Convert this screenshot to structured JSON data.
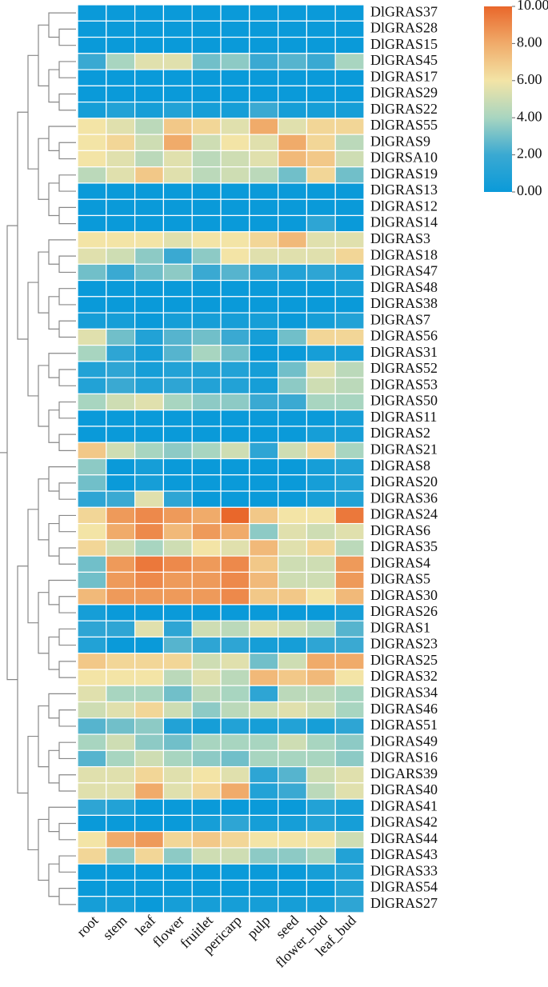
{
  "chart_data": {
    "type": "heatmap",
    "rows": [
      "DlGRAS37",
      "DlGRAS28",
      "DlGRAS15",
      "DlGRAS45",
      "DlGRAS17",
      "DlGRAS29",
      "DlGRAS22",
      "DlGRAS55",
      "DlGRAS9",
      "DlGRSA10",
      "DlGRAS19",
      "DlGRAS13",
      "DlGRAS12",
      "DlGRAS14",
      "DlGRAS3",
      "DlGRAS18",
      "DlGRAS47",
      "DlGRAS48",
      "DlGRAS38",
      "DlGRAS7",
      "DlGRAS56",
      "DlGRAS31",
      "DlGRAS52",
      "DlGRAS53",
      "DlGRAS50",
      "DlGRAS11",
      "DlGRAS2",
      "DlGRAS21",
      "DlGRAS8",
      "DlGRAS20",
      "DlGRAS36",
      "DlGRAS24",
      "DlGRAS6",
      "DlGRAS35",
      "DlGRAS4",
      "DlGRAS5",
      "DlGRAS30",
      "DlGRAS26",
      "DlGRAS1",
      "DlGRAS23",
      "DlGRAS25",
      "DlGRAS32",
      "DlGRAS34",
      "DlGRAS46",
      "DlGRAS51",
      "DlGRAS49",
      "DlGRAS16",
      "DlGARS39",
      "DlGRAS40",
      "DlGRAS41",
      "DlGRAS42",
      "DlGRAS44",
      "DlGRAS43",
      "DlGRAS33",
      "DlGRAS54",
      "DlGRAS27"
    ],
    "columns": [
      "root",
      "stem",
      "leaf",
      "flower",
      "fruitlet",
      "pericarp",
      "pulp",
      "seed",
      "flower_bud",
      "leaf_bud"
    ],
    "values": [
      [
        0,
        0,
        0,
        0,
        0,
        0,
        0,
        0,
        0,
        0
      ],
      [
        0,
        0,
        0,
        0,
        0,
        0,
        0,
        0,
        0,
        0
      ],
      [
        0,
        0,
        0,
        0,
        0,
        0,
        0,
        0,
        0,
        0
      ],
      [
        2,
        4,
        5.5,
        5.5,
        3,
        3.5,
        2,
        2.5,
        2,
        4
      ],
      [
        0,
        0,
        0,
        0,
        0,
        0,
        0,
        0,
        0,
        0
      ],
      [
        0,
        0,
        0,
        0,
        0,
        0,
        0,
        0,
        0,
        0
      ],
      [
        0.5,
        1,
        0.5,
        1,
        0.5,
        0.5,
        2,
        0.5,
        0.5,
        0.5
      ],
      [
        6,
        5.5,
        4.5,
        7,
        6.5,
        5.5,
        8,
        5.5,
        6.5,
        6.5
      ],
      [
        6,
        6.5,
        5,
        8,
        5,
        6,
        5.5,
        8,
        6.5,
        4.5
      ],
      [
        6,
        5.5,
        4.5,
        5.5,
        4.5,
        5,
        5.5,
        7.5,
        7,
        5
      ],
      [
        4.5,
        5.5,
        7,
        5.5,
        4.5,
        5,
        4.5,
        3,
        6.5,
        3
      ],
      [
        0,
        0,
        0,
        0,
        0,
        0,
        0,
        0,
        0,
        0
      ],
      [
        0,
        0,
        0,
        0,
        0,
        0,
        0,
        0,
        0,
        0
      ],
      [
        0,
        0,
        0,
        0,
        0,
        0,
        0,
        0,
        1.5,
        0
      ],
      [
        6,
        6,
        6,
        5.5,
        6,
        6,
        6.5,
        7.5,
        5.5,
        5.5
      ],
      [
        5.5,
        5,
        3.5,
        2,
        3.5,
        6,
        5.5,
        5.5,
        5.5,
        6.5
      ],
      [
        3,
        2,
        3,
        3.5,
        2,
        2.5,
        1.5,
        1,
        1.5,
        1
      ],
      [
        0,
        0,
        0,
        0,
        0,
        0,
        0,
        0,
        0,
        0.5
      ],
      [
        0,
        0,
        0,
        0,
        0,
        0,
        0,
        0,
        0,
        0
      ],
      [
        0.5,
        0.5,
        0,
        0.5,
        0.5,
        0.5,
        0.5,
        0,
        0.5,
        1
      ],
      [
        5.5,
        3,
        1,
        2.5,
        3,
        2,
        0.5,
        3,
        6.5,
        6.5
      ],
      [
        4,
        1.5,
        0.5,
        2.5,
        4,
        3,
        0,
        0,
        0.5,
        0.5
      ],
      [
        1,
        1.5,
        0.5,
        1,
        1,
        1,
        0.5,
        3,
        5.5,
        4.5
      ],
      [
        1,
        2,
        1,
        1.5,
        1,
        1,
        0.5,
        3.5,
        5,
        4.5
      ],
      [
        4,
        5,
        5.5,
        4,
        3.5,
        3.5,
        2,
        2,
        4,
        4
      ],
      [
        0,
        0,
        0,
        0,
        0,
        0,
        0,
        0,
        0,
        0.5
      ],
      [
        0,
        0,
        0,
        0,
        0,
        0,
        0,
        0,
        0.5,
        0.5
      ],
      [
        7,
        5,
        4,
        3.5,
        4,
        5,
        1.5,
        5,
        6.5,
        4
      ],
      [
        3.5,
        0,
        0.5,
        0,
        0,
        0,
        0,
        0,
        0.5,
        1
      ],
      [
        3,
        0,
        0.5,
        0,
        0,
        0,
        0,
        0,
        0.5,
        1
      ],
      [
        1.5,
        2,
        5.5,
        1.5,
        0,
        0,
        0,
        0,
        0.5,
        1
      ],
      [
        6.5,
        8.5,
        9,
        8.5,
        8,
        10,
        7,
        6,
        6,
        9.5
      ],
      [
        6,
        8,
        9,
        7.5,
        8.5,
        8,
        3.5,
        5.5,
        5,
        5.5
      ],
      [
        6.5,
        5,
        4,
        5,
        6,
        5.5,
        7.5,
        5.5,
        6.5,
        4.5
      ],
      [
        3,
        8.5,
        9.5,
        9,
        8.5,
        9,
        7,
        5,
        5,
        8.5
      ],
      [
        3,
        8.5,
        9,
        8.5,
        8.5,
        9,
        7.5,
        5,
        5,
        8.5
      ],
      [
        7.5,
        8.5,
        8.5,
        8.5,
        8.5,
        9,
        7,
        7,
        6,
        7.5
      ],
      [
        0.5,
        0,
        0,
        0,
        0,
        0,
        0,
        0,
        0,
        0.5
      ],
      [
        1.5,
        1.5,
        5.5,
        1.5,
        5,
        4.5,
        5.5,
        5,
        4.5,
        2.5
      ],
      [
        1,
        0,
        0,
        2.5,
        1.5,
        1.5,
        0.5,
        0.5,
        1.5,
        2
      ],
      [
        7,
        6.5,
        6.5,
        6.5,
        5,
        5.5,
        3,
        5,
        8,
        8
      ],
      [
        6,
        6,
        6,
        4.5,
        5.5,
        4.5,
        7.5,
        7,
        7.5,
        6
      ],
      [
        5.5,
        4,
        4,
        3,
        4.5,
        4,
        1.5,
        4.5,
        4.5,
        4
      ],
      [
        5,
        5.5,
        6.5,
        5,
        3.5,
        4.5,
        5,
        5.5,
        5,
        4
      ],
      [
        2.5,
        3,
        3.5,
        1,
        0.5,
        1,
        0.5,
        1,
        0.5,
        1.5
      ],
      [
        4,
        5,
        3.5,
        3,
        4,
        4,
        4,
        5,
        4,
        3.5
      ],
      [
        2.5,
        4,
        5,
        4,
        3.5,
        3,
        4,
        4,
        4,
        3.5
      ],
      [
        5.5,
        5.5,
        6.5,
        5.5,
        6,
        5.5,
        1.5,
        2.5,
        5,
        5.5
      ],
      [
        5.5,
        5.5,
        8,
        5.5,
        6.5,
        8,
        1,
        2,
        4.5,
        5.5
      ],
      [
        1.5,
        1,
        0,
        0,
        0,
        0,
        0,
        0,
        1,
        0.5
      ],
      [
        0,
        0,
        0,
        0,
        0.5,
        1.5,
        0.5,
        0.5,
        1,
        0.5
      ],
      [
        6,
        8,
        8.5,
        6.5,
        7,
        6.5,
        6,
        6,
        6,
        5
      ],
      [
        6.5,
        3.5,
        6.5,
        3.5,
        5,
        5,
        3.5,
        3.5,
        4,
        1
      ],
      [
        0,
        0,
        0,
        0,
        0,
        0,
        0,
        0,
        0.5,
        1
      ],
      [
        0,
        0,
        0,
        0,
        0,
        0,
        0,
        0,
        0,
        1
      ],
      [
        0.5,
        0.5,
        0,
        0.5,
        0.5,
        0.5,
        0.5,
        0.5,
        0.5,
        1.5
      ]
    ],
    "zlim": [
      0,
      10
    ],
    "colorscale": [
      "#0a9ad9",
      "#3aa9d2",
      "#a8d5c0",
      "#f3e4a6",
      "#f0ab6a",
      "#e9672b"
    ],
    "colorbar_ticks": [
      {
        "value": 0,
        "label": "0.00"
      },
      {
        "value": 2,
        "label": "2.00"
      },
      {
        "value": 4,
        "label": "4.00"
      },
      {
        "value": 6,
        "label": "6.00"
      },
      {
        "value": 8,
        "label": "8.00"
      },
      {
        "value": 10,
        "label": "10.00"
      }
    ]
  }
}
